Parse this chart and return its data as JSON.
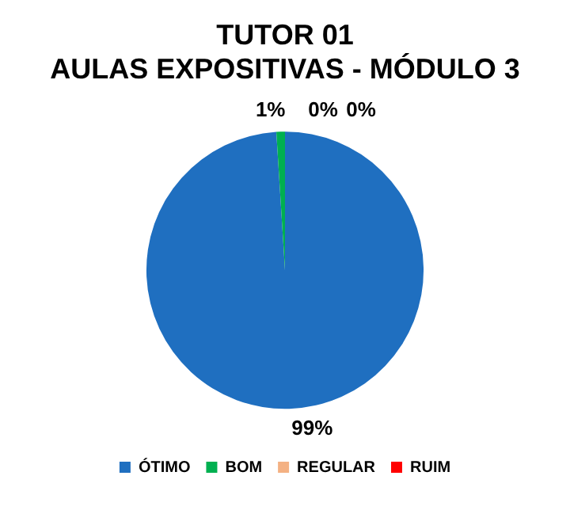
{
  "chart_data": {
    "type": "pie",
    "title": "TUTOR 01",
    "subtitle": "AULAS EXPOSITIVAS - MÓDULO 3",
    "categories": [
      "ÓTIMO",
      "BOM",
      "REGULAR",
      "RUIM"
    ],
    "values": [
      99,
      1,
      0,
      0
    ],
    "colors": [
      "#1f6fc0",
      "#00b050",
      "#f4b183",
      "#ff0000"
    ],
    "value_labels": [
      "99%",
      "1%",
      "0%",
      "0%"
    ],
    "legend": "bottom"
  }
}
